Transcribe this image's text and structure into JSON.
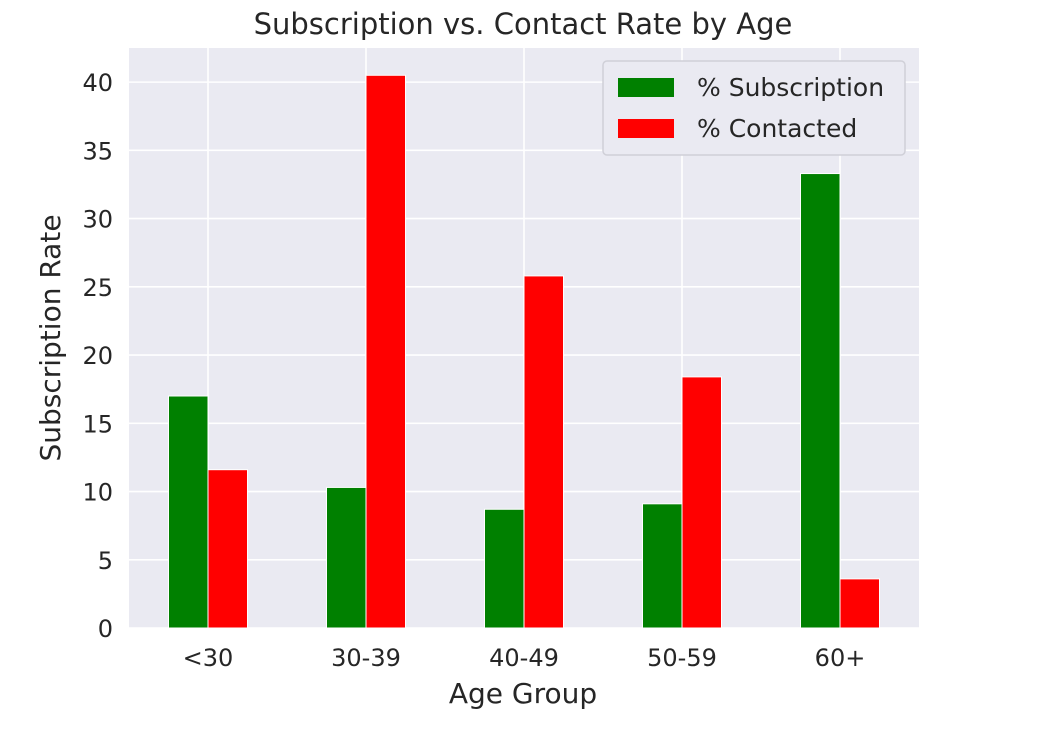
{
  "chart_data": {
    "type": "bar",
    "title": "Subscription vs. Contact Rate by Age",
    "xlabel": "Age Group",
    "ylabel": "Subscription Rate",
    "categories": [
      "<30",
      "30-39",
      "40-49",
      "50-59",
      "60+"
    ],
    "series": [
      {
        "name": "% Subscription",
        "color": "#008000",
        "values": [
          17.0,
          10.3,
          8.7,
          9.1,
          33.3
        ]
      },
      {
        "name": "% Contacted",
        "color": "#ff0000",
        "values": [
          11.6,
          40.5,
          25.8,
          18.4,
          3.6
        ]
      }
    ],
    "ylim": [
      0,
      42.5
    ],
    "yticks": [
      0,
      5,
      10,
      15,
      20,
      25,
      30,
      35,
      40
    ],
    "grid": true,
    "legend_position": "top-right",
    "plot_background": "#eaeaf2",
    "grid_color": "#ffffff"
  }
}
